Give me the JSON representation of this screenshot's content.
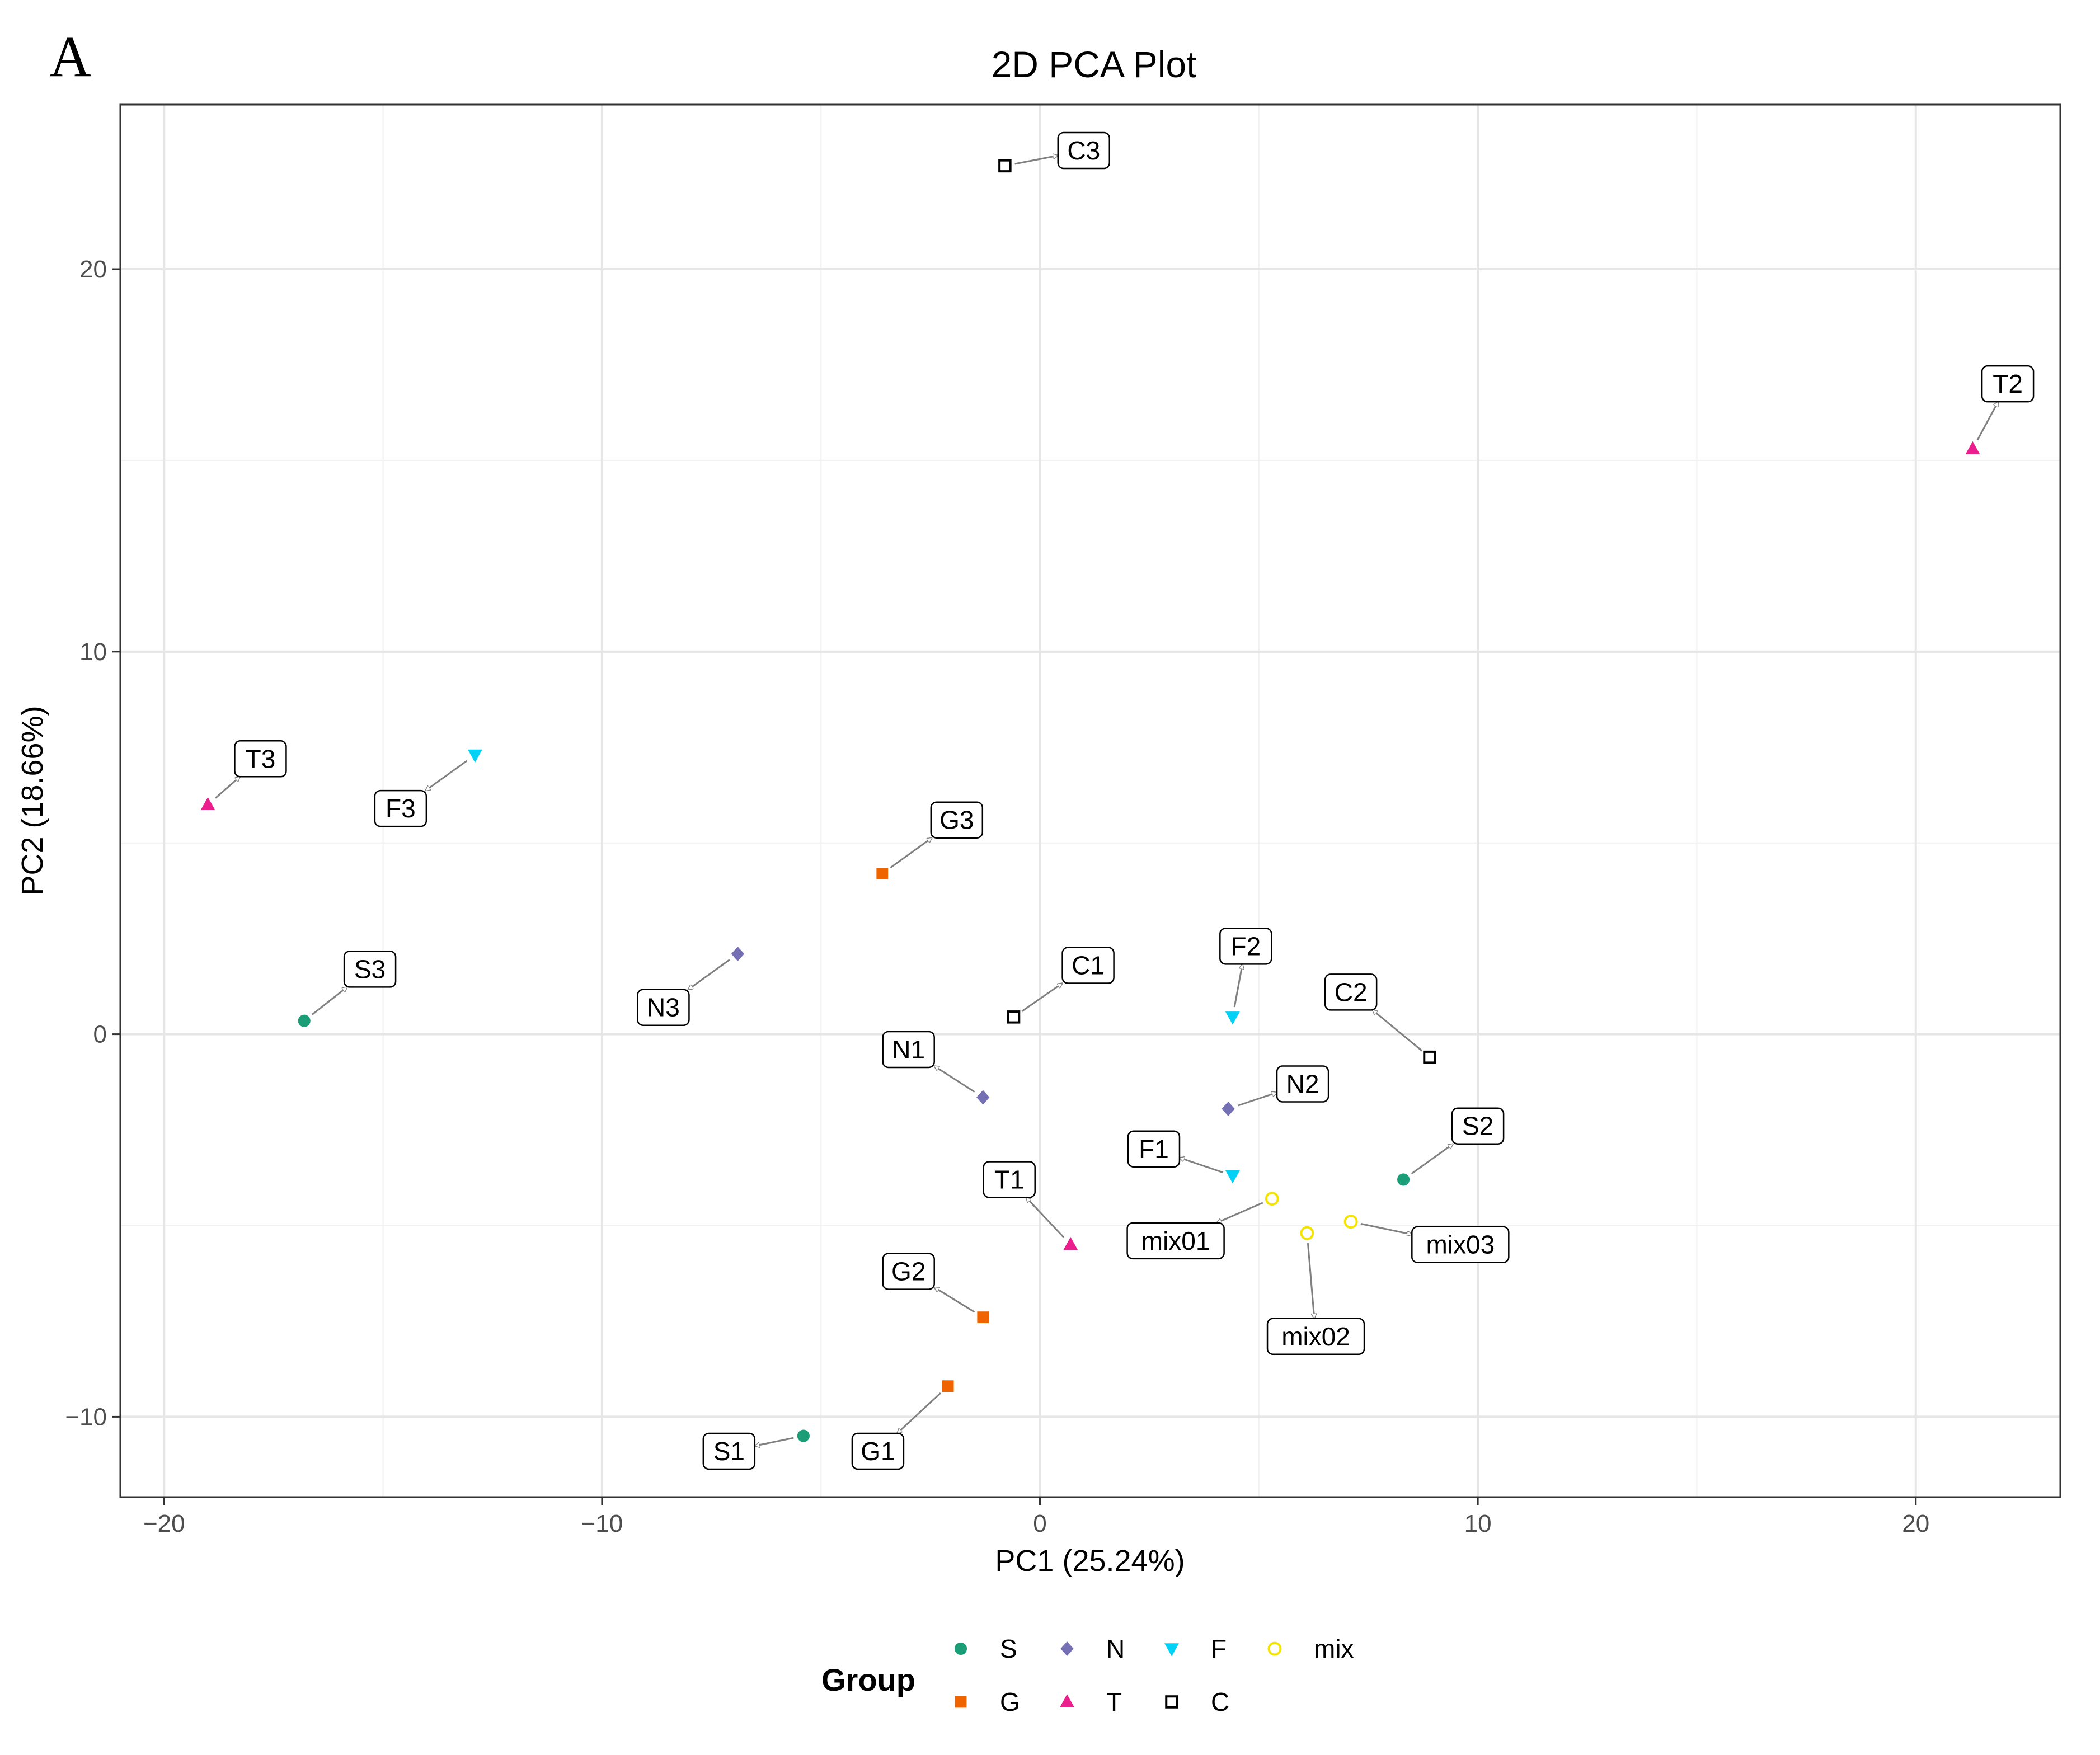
{
  "panel_letter": "A",
  "chart_data": {
    "type": "scatter",
    "title": "2D PCA Plot",
    "xlabel": "PC1 (25.24%)",
    "ylabel": "PC2 (18.66%)",
    "xlim": [
      -21,
      23.3
    ],
    "ylim": [
      -12.1,
      24.3
    ],
    "x_ticks": [
      -20,
      -10,
      0,
      10,
      20
    ],
    "x_tick_labels": [
      "−20",
      "−10",
      "0",
      "10",
      "20"
    ],
    "y_ticks": [
      -10,
      0,
      10,
      20
    ],
    "y_tick_labels": [
      "−10",
      "0",
      "10",
      "20"
    ],
    "grid": true,
    "legend": {
      "title": "Group",
      "position": "bottom",
      "entries": [
        {
          "name": "S",
          "color": "#1b9e77",
          "shape": "circle"
        },
        {
          "name": "N",
          "color": "#7570b3",
          "shape": "diamond"
        },
        {
          "name": "F",
          "color": "#00d1f5",
          "shape": "triangle-down"
        },
        {
          "name": "mix",
          "color": "#f5e300",
          "shape": "open-circle"
        },
        {
          "name": "G",
          "color": "#f06400",
          "shape": "square"
        },
        {
          "name": "T",
          "color": "#ea1e8c",
          "shape": "triangle-up"
        },
        {
          "name": "C",
          "color": "#000000",
          "shape": "open-square"
        }
      ]
    },
    "points": [
      {
        "label": "C3",
        "group": "C",
        "x": -0.8,
        "y": 22.7,
        "lx": 1.0,
        "ly": 23.1
      },
      {
        "label": "T2",
        "group": "T",
        "x": 21.3,
        "y": 15.3,
        "lx": 22.1,
        "ly": 17.0
      },
      {
        "label": "T3",
        "group": "T",
        "x": -19.0,
        "y": 6.0,
        "lx": -17.8,
        "ly": 7.2
      },
      {
        "label": "F3",
        "group": "F",
        "x": -12.9,
        "y": 7.3,
        "lx": -14.6,
        "ly": 5.9
      },
      {
        "label": "G3",
        "group": "G",
        "x": -3.6,
        "y": 4.2,
        "lx": -1.9,
        "ly": 5.6
      },
      {
        "label": "S3",
        "group": "S",
        "x": -16.8,
        "y": 0.35,
        "lx": -15.3,
        "ly": 1.7
      },
      {
        "label": "N3",
        "group": "N",
        "x": -6.9,
        "y": 2.1,
        "lx": -8.6,
        "ly": 0.7
      },
      {
        "label": "C1",
        "group": "C",
        "x": -0.6,
        "y": 0.45,
        "lx": 1.1,
        "ly": 1.8
      },
      {
        "label": "F2",
        "group": "F",
        "x": 4.4,
        "y": 0.45,
        "lx": 4.7,
        "ly": 2.3
      },
      {
        "label": "C2",
        "group": "C",
        "x": 8.9,
        "y": -0.6,
        "lx": 7.1,
        "ly": 1.1
      },
      {
        "label": "N1",
        "group": "N",
        "x": -1.3,
        "y": -1.65,
        "lx": -3.0,
        "ly": -0.4
      },
      {
        "label": "N2",
        "group": "N",
        "x": 4.3,
        "y": -1.95,
        "lx": 6.0,
        "ly": -1.3
      },
      {
        "label": "S2",
        "group": "S",
        "x": 8.3,
        "y": -3.8,
        "lx": 10.0,
        "ly": -2.4
      },
      {
        "label": "F1",
        "group": "F",
        "x": 4.4,
        "y": -3.7,
        "lx": 2.6,
        "ly": -3.0
      },
      {
        "label": "T1",
        "group": "T",
        "x": 0.7,
        "y": -5.5,
        "lx": -0.7,
        "ly": -3.8
      },
      {
        "label": "mix01",
        "group": "mix",
        "x": 5.3,
        "y": -4.3,
        "lx": 3.1,
        "ly": -5.4
      },
      {
        "label": "mix02",
        "group": "mix",
        "x": 6.1,
        "y": -5.2,
        "lx": 6.3,
        "ly": -7.9
      },
      {
        "label": "mix03",
        "group": "mix",
        "x": 7.1,
        "y": -4.9,
        "lx": 9.6,
        "ly": -5.5
      },
      {
        "label": "G2",
        "group": "G",
        "x": -1.3,
        "y": -7.4,
        "lx": -3.0,
        "ly": -6.2
      },
      {
        "label": "G1",
        "group": "G",
        "x": -2.1,
        "y": -9.2,
        "lx": -3.7,
        "ly": -10.9
      },
      {
        "label": "S1",
        "group": "S",
        "x": -5.4,
        "y": -10.5,
        "lx": -7.1,
        "ly": -10.9
      }
    ]
  }
}
